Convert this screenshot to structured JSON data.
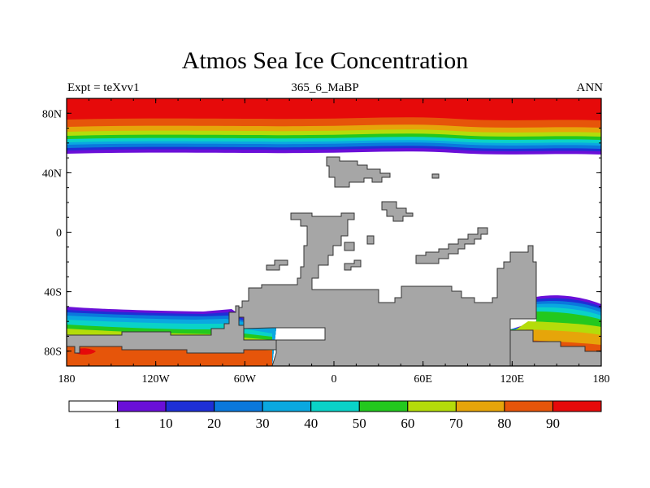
{
  "title": "Atmos Sea Ice Concentration",
  "subtitle_left": "Expt = teXvv1",
  "subtitle_center": "365_6_MaBP",
  "subtitle_right": "ANN",
  "map": {
    "projection": "cylindrical-equidistant",
    "lon_range": [
      -180,
      180
    ],
    "lat_range": [
      -90,
      90
    ],
    "land_color": "#a6a6a6",
    "x_ticks": [
      {
        "value": -180,
        "label": "180"
      },
      {
        "value": -120,
        "label": "120W"
      },
      {
        "value": -60,
        "label": "60W"
      },
      {
        "value": 0,
        "label": "0"
      },
      {
        "value": 60,
        "label": "60E"
      },
      {
        "value": 120,
        "label": "120E"
      },
      {
        "value": 180,
        "label": "180"
      }
    ],
    "y_ticks": [
      {
        "value": 80,
        "label": "80N"
      },
      {
        "value": 40,
        "label": "40N"
      },
      {
        "value": 0,
        "label": "0"
      },
      {
        "value": -40,
        "label": "40S"
      },
      {
        "value": -80,
        "label": "80S"
      }
    ]
  },
  "colorbar": {
    "levels": [
      "1",
      "10",
      "20",
      "30",
      "40",
      "50",
      "60",
      "70",
      "80",
      "90"
    ],
    "colors": [
      "#ffffff",
      "#6a0fd8",
      "#1e2fd6",
      "#0a78dc",
      "#0aa8e0",
      "#0ad2c8",
      "#23c81e",
      "#b4dc0a",
      "#e6a50a",
      "#e6550a",
      "#e60a0a"
    ]
  }
}
